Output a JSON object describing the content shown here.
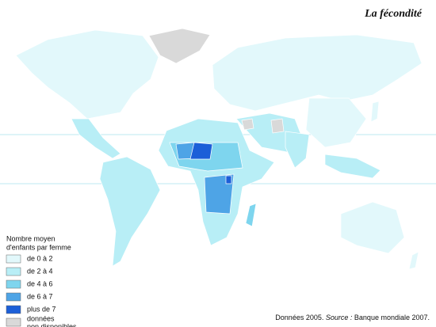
{
  "title": "La fécondité",
  "legend": {
    "title_lines": [
      "Nombre moyen",
      "d'enfants par femme"
    ],
    "items": [
      {
        "label": [
          "de 0 à 2"
        ],
        "color": "#e2f8fb"
      },
      {
        "label": [
          "de 2 à 4"
        ],
        "color": "#b8eef6"
      },
      {
        "label": [
          "de 4 à 6"
        ],
        "color": "#7ed5ee"
      },
      {
        "label": [
          "de 6 à 7"
        ],
        "color": "#4ea4e6"
      },
      {
        "label": [
          "plus de 7"
        ],
        "color": "#1c5fd8"
      },
      {
        "label": [
          "données",
          "non disponibles"
        ],
        "color": "#d9d9d9"
      }
    ]
  },
  "source": {
    "prefix": "Données 2005.",
    "label": "Source :",
    "text": "Banque mondiale 2007."
  }
}
